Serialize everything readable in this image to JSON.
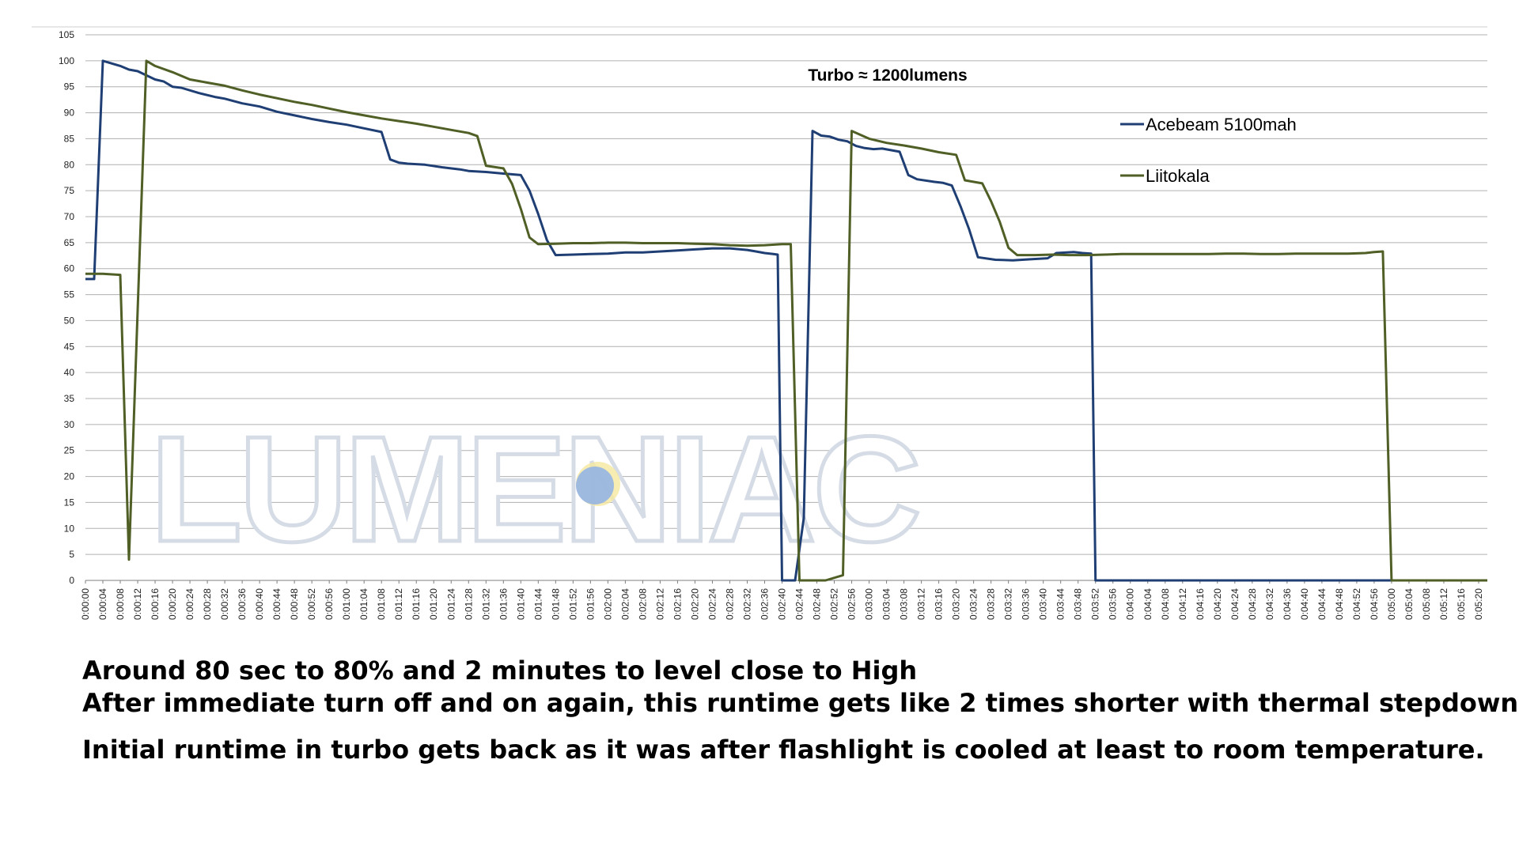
{
  "chart_data": {
    "type": "line",
    "title": "Turbo  ≈ 1200lumens",
    "xlabel": "",
    "ylabel": "",
    "ylim": [
      0,
      105
    ],
    "yticks": [
      0,
      5,
      10,
      15,
      20,
      25,
      30,
      35,
      40,
      45,
      50,
      55,
      60,
      65,
      70,
      75,
      80,
      85,
      90,
      95,
      100,
      105
    ],
    "x_unit": "seconds",
    "xlim": [
      0,
      322
    ],
    "x_tick_labels": [
      "0:00:00",
      "0:00:04",
      "0:00:08",
      "0:00:12",
      "0:00:16",
      "0:00:20",
      "0:00:24",
      "0:00:28",
      "0:00:32",
      "0:00:36",
      "0:00:40",
      "0:00:44",
      "0:00:48",
      "0:00:52",
      "0:00:56",
      "0:01:00",
      "0:01:04",
      "0:01:08",
      "0:01:12",
      "0:01:16",
      "0:01:20",
      "0:01:24",
      "0:01:28",
      "0:01:32",
      "0:01:36",
      "0:01:40",
      "0:01:44",
      "0:01:48",
      "0:01:52",
      "0:01:56",
      "0:02:00",
      "0:02:04",
      "0:02:08",
      "0:02:12",
      "0:02:16",
      "0:02:20",
      "0:02:24",
      "0:02:28",
      "0:02:32",
      "0:02:36",
      "0:02:40",
      "0:02:44",
      "0:02:48",
      "0:02:52",
      "0:02:56",
      "0:03:00",
      "0:03:04",
      "0:03:08",
      "0:03:12",
      "0:03:16",
      "0:03:20",
      "0:03:24",
      "0:03:28",
      "0:03:32",
      "0:03:36",
      "0:03:40",
      "0:03:44",
      "0:03:48",
      "0:03:52",
      "0:03:56",
      "0:04:00",
      "0:04:04",
      "0:04:08",
      "0:04:12",
      "0:04:16",
      "0:04:20",
      "0:04:24",
      "0:04:28",
      "0:04:32",
      "0:04:36",
      "0:04:40",
      "0:04:44",
      "0:04:48",
      "0:04:52",
      "0:04:56",
      "0:05:00",
      "0:05:04",
      "0:05:08",
      "0:05:12",
      "0:05:16",
      "0:05:20"
    ],
    "grid": true,
    "legend_position": "top-right",
    "series": [
      {
        "name": "Acebeam 5100mah",
        "color": "#1f3f74",
        "points": [
          [
            0,
            58
          ],
          [
            2,
            58
          ],
          [
            4,
            100
          ],
          [
            8,
            99
          ],
          [
            10,
            98.3
          ],
          [
            12,
            98
          ],
          [
            16,
            96.4
          ],
          [
            18,
            96
          ],
          [
            20,
            95
          ],
          [
            22,
            94.8
          ],
          [
            26,
            93.8
          ],
          [
            30,
            93
          ],
          [
            32,
            92.7
          ],
          [
            36,
            91.8
          ],
          [
            40,
            91.2
          ],
          [
            44,
            90.2
          ],
          [
            48,
            89.5
          ],
          [
            52,
            88.8
          ],
          [
            56,
            88.2
          ],
          [
            60,
            87.7
          ],
          [
            64,
            87
          ],
          [
            68,
            86.3
          ],
          [
            70,
            81
          ],
          [
            72,
            80.4
          ],
          [
            74,
            80.2
          ],
          [
            78,
            80
          ],
          [
            82,
            79.5
          ],
          [
            86,
            79.1
          ],
          [
            88,
            78.8
          ],
          [
            92,
            78.6
          ],
          [
            96,
            78.3
          ],
          [
            100,
            78
          ],
          [
            102,
            75
          ],
          [
            104,
            70.5
          ],
          [
            106,
            65.5
          ],
          [
            108,
            62.6
          ],
          [
            112,
            62.7
          ],
          [
            116,
            62.8
          ],
          [
            120,
            62.9
          ],
          [
            124,
            63.1
          ],
          [
            128,
            63.1
          ],
          [
            132,
            63.3
          ],
          [
            136,
            63.5
          ],
          [
            140,
            63.7
          ],
          [
            144,
            63.9
          ],
          [
            148,
            63.9
          ],
          [
            152,
            63.6
          ],
          [
            154,
            63.3
          ],
          [
            156,
            63
          ],
          [
            158,
            62.8
          ],
          [
            159,
            62.7
          ],
          [
            160,
            0
          ],
          [
            163,
            0
          ],
          [
            165,
            12
          ],
          [
            167,
            86.5
          ],
          [
            169,
            85.6
          ],
          [
            171,
            85.4
          ],
          [
            173,
            84.8
          ],
          [
            175,
            84.5
          ],
          [
            177,
            83.6
          ],
          [
            179,
            83.2
          ],
          [
            181,
            83
          ],
          [
            183,
            83.1
          ],
          [
            187,
            82.5
          ],
          [
            189,
            78
          ],
          [
            191,
            77.2
          ],
          [
            195,
            76.7
          ],
          [
            197,
            76.5
          ],
          [
            199,
            76
          ],
          [
            201,
            72
          ],
          [
            203,
            67.5
          ],
          [
            205,
            62.2
          ],
          [
            209,
            61.7
          ],
          [
            213,
            61.6
          ],
          [
            217,
            61.8
          ],
          [
            221,
            62
          ],
          [
            223,
            63
          ],
          [
            227,
            63.2
          ],
          [
            229,
            63
          ],
          [
            231,
            62.9
          ],
          [
            232,
            0
          ],
          [
            322,
            0
          ]
        ]
      },
      {
        "name": "Liitokala",
        "color": "#4f5f25",
        "points": [
          [
            0,
            59
          ],
          [
            4,
            59
          ],
          [
            8,
            58.8
          ],
          [
            10,
            4
          ],
          [
            14,
            100
          ],
          [
            16,
            99
          ],
          [
            20,
            97.8
          ],
          [
            24,
            96.4
          ],
          [
            28,
            95.8
          ],
          [
            32,
            95.2
          ],
          [
            36,
            94.3
          ],
          [
            40,
            93.5
          ],
          [
            44,
            92.8
          ],
          [
            48,
            92.1
          ],
          [
            52,
            91.5
          ],
          [
            56,
            90.8
          ],
          [
            60,
            90.1
          ],
          [
            64,
            89.5
          ],
          [
            68,
            88.9
          ],
          [
            72,
            88.4
          ],
          [
            76,
            87.9
          ],
          [
            80,
            87.3
          ],
          [
            84,
            86.7
          ],
          [
            88,
            86.1
          ],
          [
            90,
            85.5
          ],
          [
            92,
            79.8
          ],
          [
            96,
            79.3
          ],
          [
            98,
            76.3
          ],
          [
            100,
            71.5
          ],
          [
            102,
            66
          ],
          [
            104,
            64.7
          ],
          [
            108,
            64.8
          ],
          [
            112,
            64.9
          ],
          [
            116,
            64.9
          ],
          [
            120,
            65
          ],
          [
            124,
            65
          ],
          [
            128,
            64.9
          ],
          [
            132,
            64.9
          ],
          [
            136,
            64.9
          ],
          [
            140,
            64.8
          ],
          [
            144,
            64.7
          ],
          [
            148,
            64.5
          ],
          [
            152,
            64.4
          ],
          [
            156,
            64.5
          ],
          [
            160,
            64.7
          ],
          [
            162,
            64.7
          ],
          [
            164,
            0
          ],
          [
            170,
            0
          ],
          [
            174,
            1
          ],
          [
            176,
            86.5
          ],
          [
            180,
            85
          ],
          [
            184,
            84.2
          ],
          [
            188,
            83.7
          ],
          [
            192,
            83.1
          ],
          [
            196,
            82.4
          ],
          [
            200,
            81.9
          ],
          [
            202,
            77
          ],
          [
            206,
            76.4
          ],
          [
            208,
            73
          ],
          [
            210,
            69
          ],
          [
            212,
            64
          ],
          [
            214,
            62.6
          ],
          [
            218,
            62.6
          ],
          [
            222,
            62.7
          ],
          [
            226,
            62.6
          ],
          [
            230,
            62.6
          ],
          [
            234,
            62.7
          ],
          [
            238,
            62.8
          ],
          [
            242,
            62.8
          ],
          [
            246,
            62.8
          ],
          [
            250,
            62.8
          ],
          [
            254,
            62.8
          ],
          [
            258,
            62.8
          ],
          [
            262,
            62.9
          ],
          [
            266,
            62.9
          ],
          [
            270,
            62.8
          ],
          [
            274,
            62.8
          ],
          [
            278,
            62.9
          ],
          [
            282,
            62.9
          ],
          [
            286,
            62.9
          ],
          [
            290,
            62.9
          ],
          [
            294,
            63.0
          ],
          [
            296,
            63.2
          ],
          [
            298,
            63.3
          ],
          [
            300,
            0
          ],
          [
            322,
            0
          ]
        ]
      }
    ]
  },
  "watermark": {
    "text": "LUMENIAC"
  },
  "notes": {
    "line1": "Around 80  sec to 80%  and 2 minutes to level close to High",
    "line2": "After immediate turn off and on again, this runtime gets like 2 times shorter with thermal stepdown.",
    "line3": "Initial runtime in turbo gets back as it was after flashlight is cooled at least to room temperature."
  }
}
